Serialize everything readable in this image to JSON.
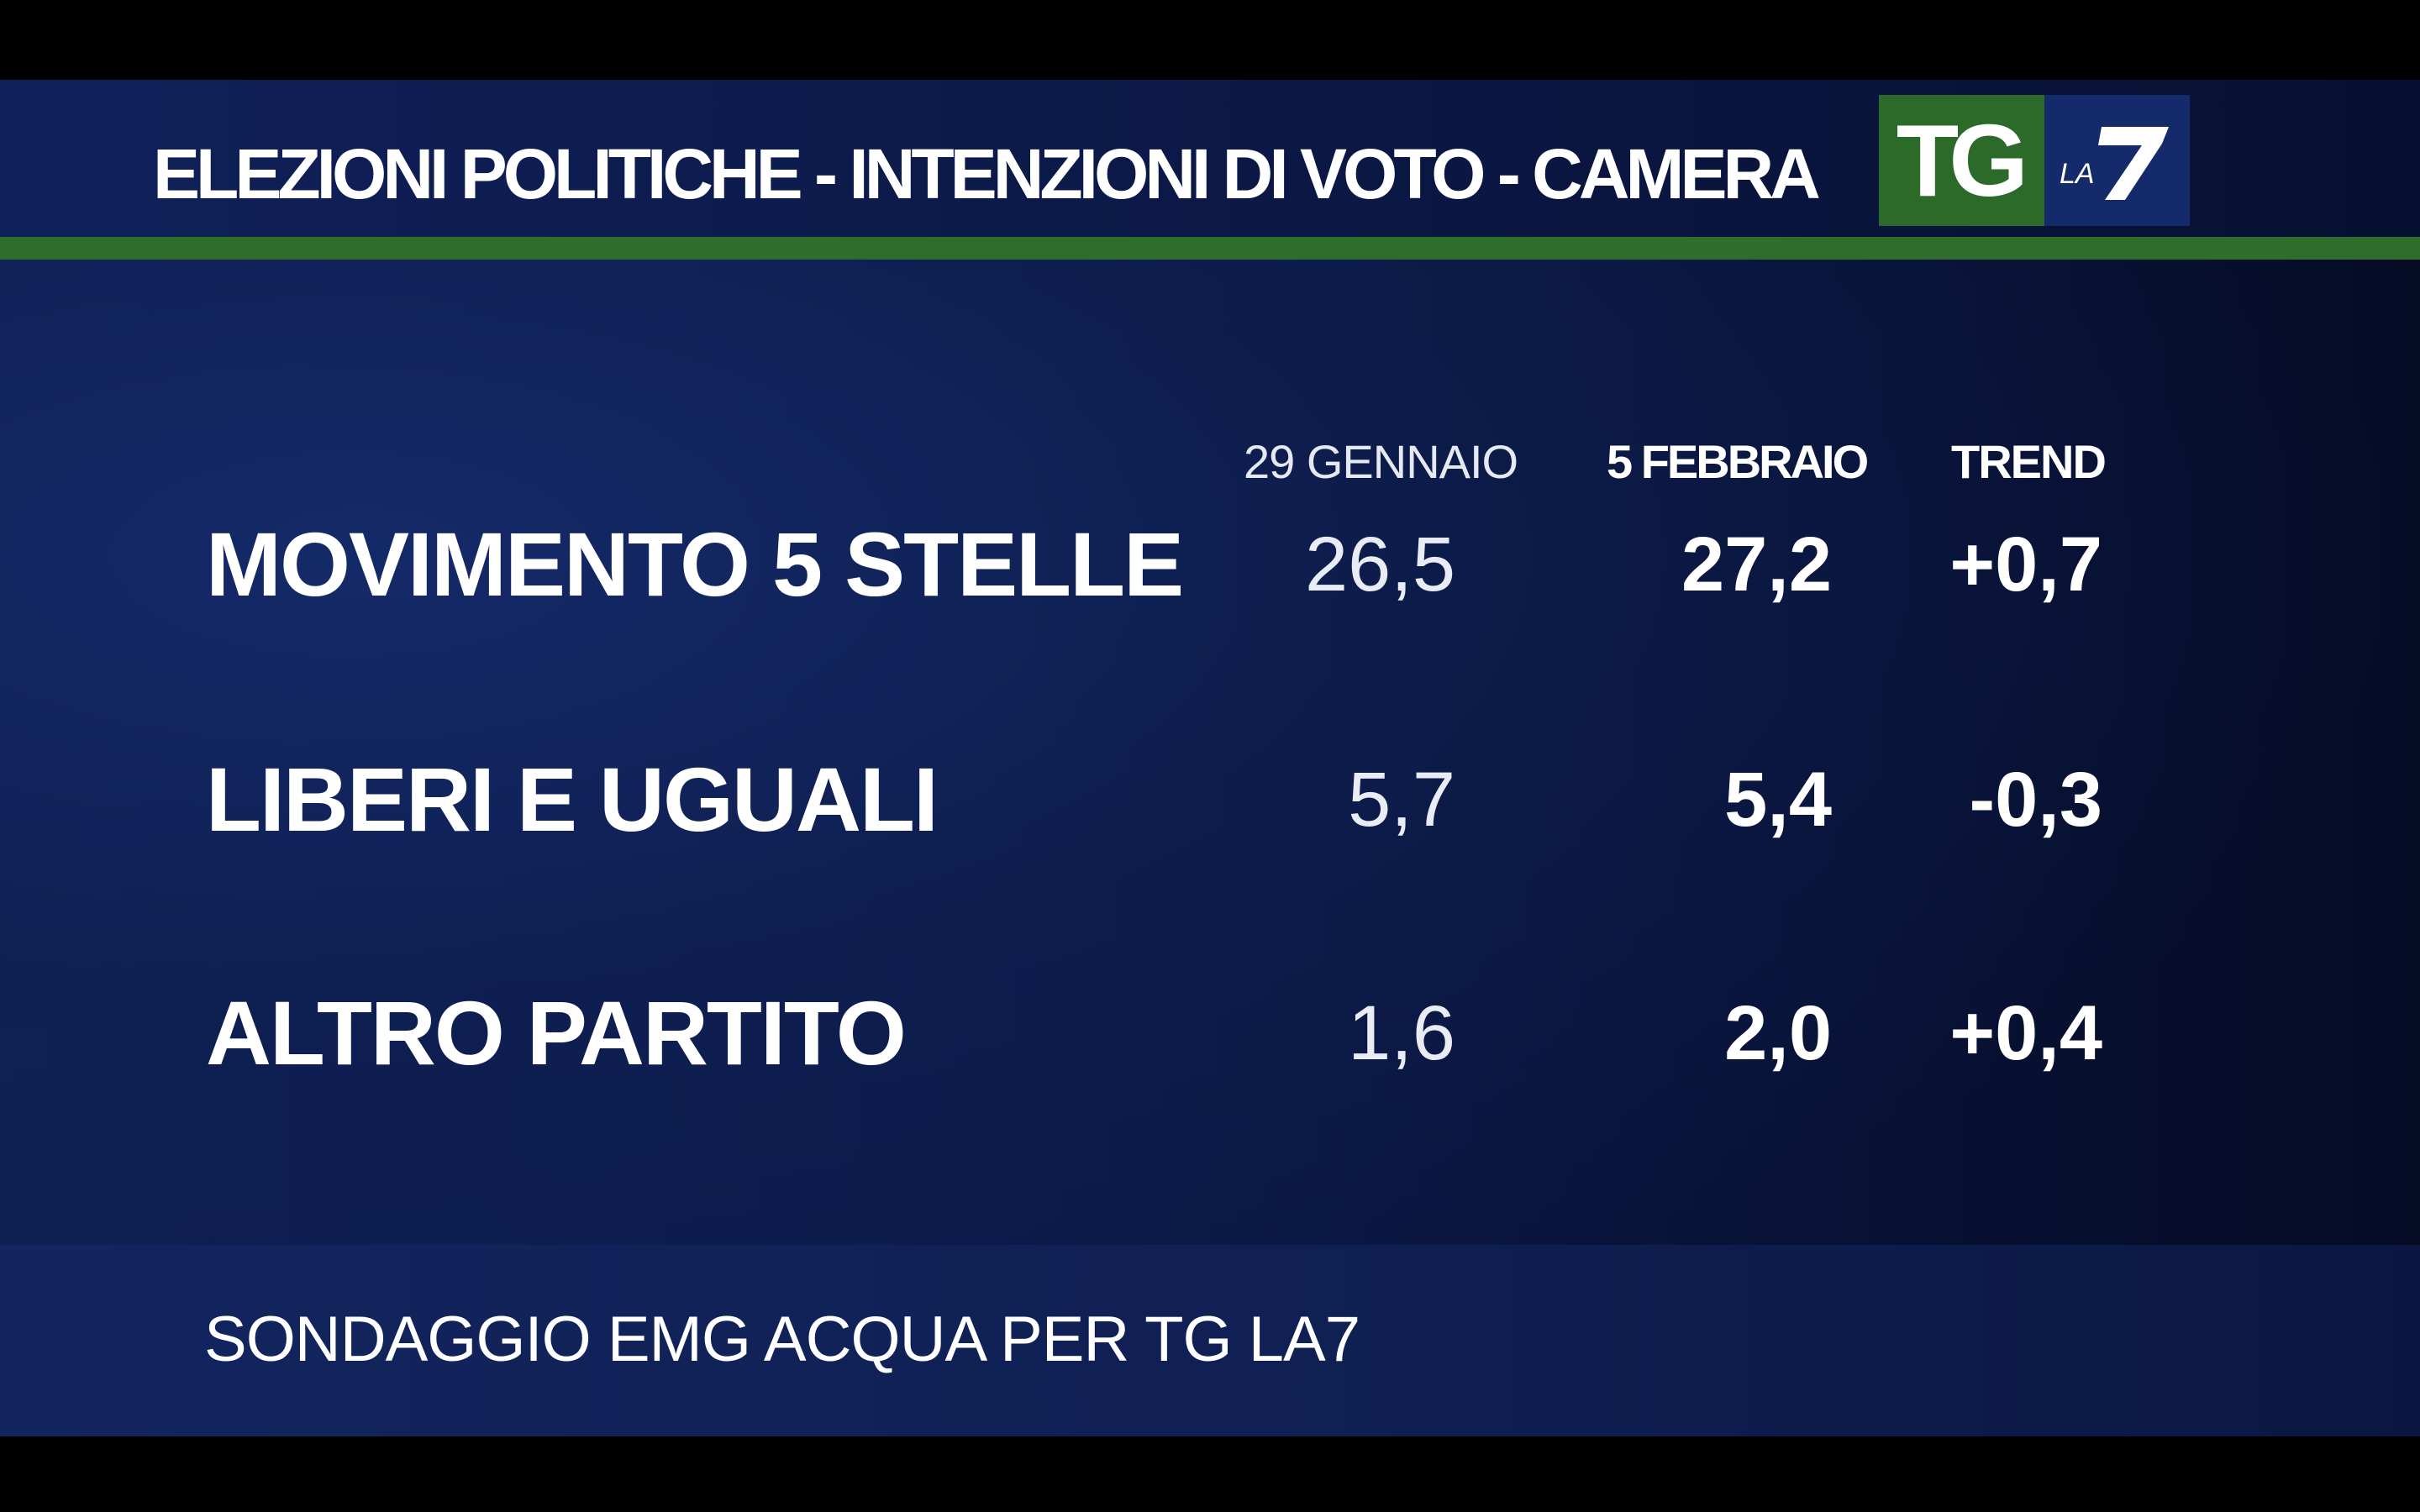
{
  "header": {
    "title": "ELEZIONI POLITICHE - INTENZIONI DI VOTO - CAMERA",
    "logo_left_text": "TG",
    "logo_right_small": "LA",
    "logo_right_big": "7"
  },
  "chart_data": {
    "type": "table",
    "title": "ELEZIONI POLITICHE - INTENZIONI DI VOTO - CAMERA",
    "columns": [
      "29 GENNAIO",
      "5 FEBBRAIO",
      "TREND"
    ],
    "rows": [
      {
        "party": "MOVIMENTO 5 STELLE",
        "prev": "26,5",
        "curr": "27,2",
        "trend": "+0,7"
      },
      {
        "party": "LIBERI E UGUALI",
        "prev": "5,7",
        "curr": "5,4",
        "trend": "-0,3"
      },
      {
        "party": "ALTRO PARTITO",
        "prev": "1,6",
        "curr": "2,0",
        "trend": "+0,4"
      }
    ],
    "source": "SONDAGGIO EMG ACQUA PER TG LA7"
  },
  "colors": {
    "background": "#0b1a4a",
    "accent_green": "#2f6e2a",
    "logo_green": "#2c6a2a",
    "logo_blue": "#142a6a",
    "text": "#ffffff"
  }
}
